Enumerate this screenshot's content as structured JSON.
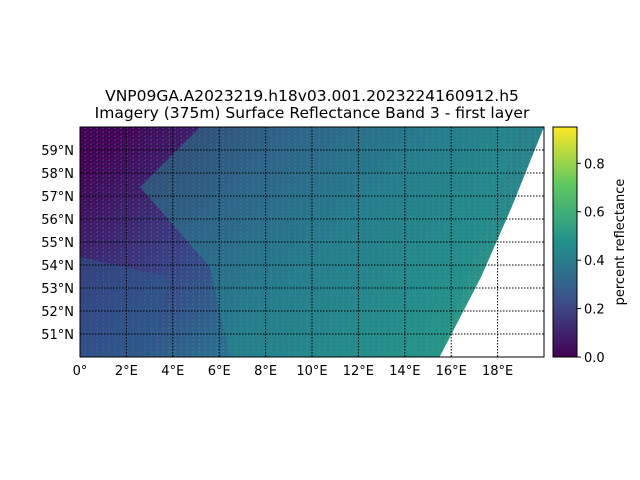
{
  "chart_data": {
    "type": "heatmap",
    "title": "VNP09GA.A2023219.h18v03.001.2023224160912.h5",
    "subtitle": "Imagery (375m) Surface Reflectance Band 3 - first layer",
    "xlabel": "",
    "ylabel": "",
    "projection": "lon-lat",
    "grid": true,
    "x_ticks": [
      "0°",
      "2°E",
      "4°E",
      "6°E",
      "8°E",
      "10°E",
      "12°E",
      "14°E",
      "16°E",
      "18°E"
    ],
    "x_tick_values": [
      0,
      2,
      4,
      6,
      8,
      10,
      12,
      14,
      16,
      18
    ],
    "y_ticks": [
      "51°N",
      "52°N",
      "53°N",
      "54°N",
      "55°N",
      "56°N",
      "57°N",
      "58°N",
      "59°N"
    ],
    "y_tick_values": [
      51,
      52,
      53,
      54,
      55,
      56,
      57,
      58,
      59
    ],
    "xlim": [
      0,
      20
    ],
    "ylim": [
      50,
      60
    ],
    "colorbar": {
      "label": "percent reflectance",
      "ticks": [
        "0.0",
        "0.2",
        "0.4",
        "0.6",
        "0.8"
      ],
      "tick_values": [
        0.0,
        0.2,
        0.4,
        0.6,
        0.8
      ],
      "range": [
        0,
        0.95
      ],
      "colormap": "viridis",
      "colors": [
        "#440154",
        "#3b528b",
        "#21918c",
        "#5ec962",
        "#fde725"
      ]
    },
    "swath_edge": [
      {
        "lon": 15.5,
        "lat": 50.0
      },
      {
        "lon": 17.3,
        "lat": 53.5
      },
      {
        "lon": 18.6,
        "lat": 56.5
      },
      {
        "lon": 20.0,
        "lat": 60.0
      }
    ]
  }
}
